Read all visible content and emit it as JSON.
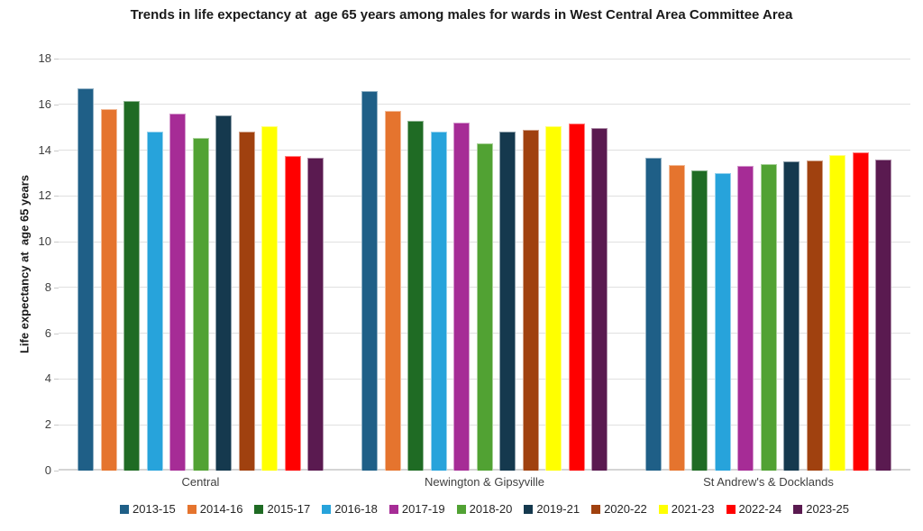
{
  "title": "Trends in life expectancy at  age 65 years among males for wards in West Central Area Committee Area",
  "chart_data": {
    "type": "bar",
    "title": "Trends in life expectancy at  age 65 years among males for wards in West Central Area Committee Area",
    "xlabel": "",
    "ylabel": "Life expectancy at  age 65 years",
    "ylim": [
      0,
      18
    ],
    "ytick_step": 2,
    "grid": "horizontal",
    "legend_position": "bottom",
    "background_color": "#ffffff",
    "gridline_color": "#e0e0e0",
    "categories": [
      "Central",
      "Newington & Gipsyville",
      "St Andrew's & Docklands"
    ],
    "series": [
      {
        "name": "2013-15",
        "color": "#1F5F87",
        "values": [
          16.7,
          16.6,
          13.65
        ]
      },
      {
        "name": "2014-16",
        "color": "#E5742E",
        "values": [
          15.8,
          15.7,
          13.35
        ]
      },
      {
        "name": "2015-17",
        "color": "#1F6B24",
        "values": [
          16.15,
          15.3,
          13.1
        ]
      },
      {
        "name": "2016-18",
        "color": "#27A3DB",
        "values": [
          14.8,
          14.8,
          13.0
        ]
      },
      {
        "name": "2017-19",
        "color": "#A62C96",
        "values": [
          15.6,
          15.2,
          13.3
        ]
      },
      {
        "name": "2018-20",
        "color": "#51A233",
        "values": [
          14.55,
          14.3,
          13.4
        ]
      },
      {
        "name": "2019-21",
        "color": "#15394E",
        "values": [
          15.5,
          14.8,
          13.5
        ]
      },
      {
        "name": "2020-22",
        "color": "#A0410F",
        "values": [
          14.8,
          14.9,
          13.55
        ]
      },
      {
        "name": "2021-23",
        "color": "#FFFF00",
        "values": [
          15.05,
          15.05,
          13.8
        ]
      },
      {
        "name": "2022-24",
        "color": "#FF0000",
        "values": [
          13.75,
          15.15,
          13.9
        ]
      },
      {
        "name": "2023-25",
        "color": "#5A1A50",
        "values": [
          13.65,
          14.95,
          13.6
        ]
      }
    ]
  }
}
